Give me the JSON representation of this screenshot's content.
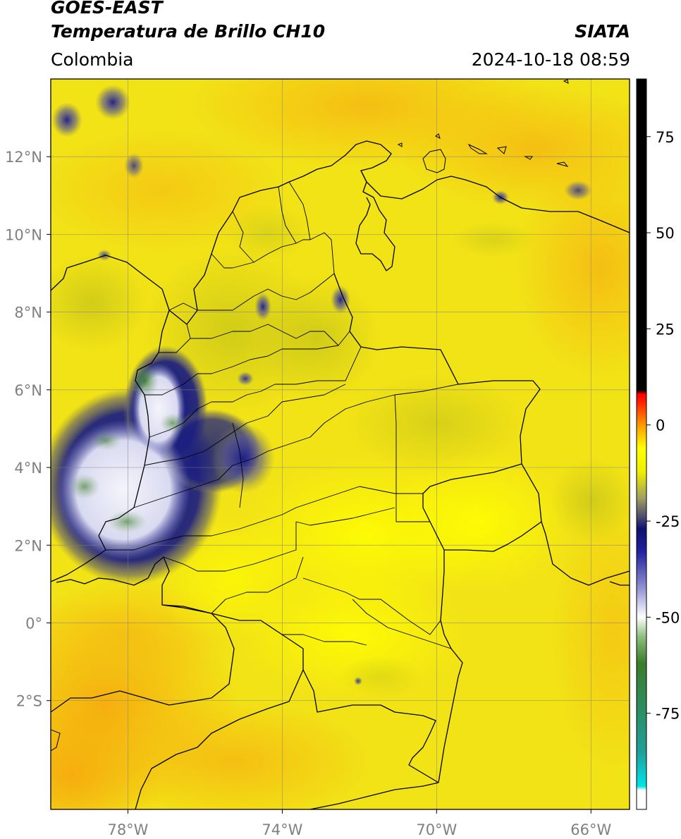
{
  "header": {
    "title_line1": "GOES-EAST",
    "title_line2": "Temperatura de Brillo CH10",
    "region": "Colombia",
    "brand": "SIATA",
    "datetime": "2024-10-18 08:59"
  },
  "map": {
    "lon_range": [
      -80,
      -65
    ],
    "lat_range": [
      -4.8,
      14
    ],
    "lon_ticks": [
      {
        "value": -78,
        "label": "78°W"
      },
      {
        "value": -74,
        "label": "74°W"
      },
      {
        "value": -70,
        "label": "70°W"
      },
      {
        "value": -66,
        "label": "66°W"
      }
    ],
    "lat_ticks": [
      {
        "value": 12,
        "label": "12°N"
      },
      {
        "value": 10,
        "label": "10°N"
      },
      {
        "value": 8,
        "label": "8°N"
      },
      {
        "value": 6,
        "label": "6°N"
      },
      {
        "value": 4,
        "label": "4°N"
      },
      {
        "value": 2,
        "label": "2°N"
      },
      {
        "value": 0,
        "label": "0°"
      },
      {
        "value": -2,
        "label": "2°S"
      }
    ],
    "background_color": "#f2e316",
    "colors": {
      "warm": "#f7c814",
      "cloud_dark": "#151a8a",
      "cloud_light": "#ffffff",
      "cloud_top": "#2f7d2f",
      "border": "#000000",
      "grid": "#808080"
    }
  },
  "colorbar": {
    "range": [
      -100,
      90
    ],
    "ticks": [
      {
        "value": 75,
        "label": "75"
      },
      {
        "value": 50,
        "label": "50"
      },
      {
        "value": 25,
        "label": "25"
      },
      {
        "value": 0,
        "label": "0"
      },
      {
        "value": -25,
        "label": "-25"
      },
      {
        "value": -50,
        "label": "-50"
      },
      {
        "value": -75,
        "label": "-75"
      }
    ],
    "stops": [
      {
        "value": -100,
        "color": "#ffffff"
      },
      {
        "value": -95,
        "color": "#ffffff"
      },
      {
        "value": -94,
        "color": "#00e5e5"
      },
      {
        "value": -85,
        "color": "#1f9f9a"
      },
      {
        "value": -72,
        "color": "#2e8b57"
      },
      {
        "value": -62,
        "color": "#3a7d2a"
      },
      {
        "value": -55,
        "color": "#8fbf7f"
      },
      {
        "value": -50,
        "color": "#ffffff"
      },
      {
        "value": -42,
        "color": "#8c8cd0"
      },
      {
        "value": -33,
        "color": "#2222a0"
      },
      {
        "value": -27,
        "color": "#101070"
      },
      {
        "value": -24,
        "color": "#4a4a70"
      },
      {
        "value": -19,
        "color": "#a0a060"
      },
      {
        "value": -12,
        "color": "#f0f000"
      },
      {
        "value": -6,
        "color": "#ffff00"
      },
      {
        "value": 0,
        "color": "#ff9900"
      },
      {
        "value": 6,
        "color": "#ff2000"
      },
      {
        "value": 8,
        "color": "#ff0000"
      },
      {
        "value": 9,
        "color": "#000000"
      },
      {
        "value": 90,
        "color": "#000000"
      }
    ]
  }
}
